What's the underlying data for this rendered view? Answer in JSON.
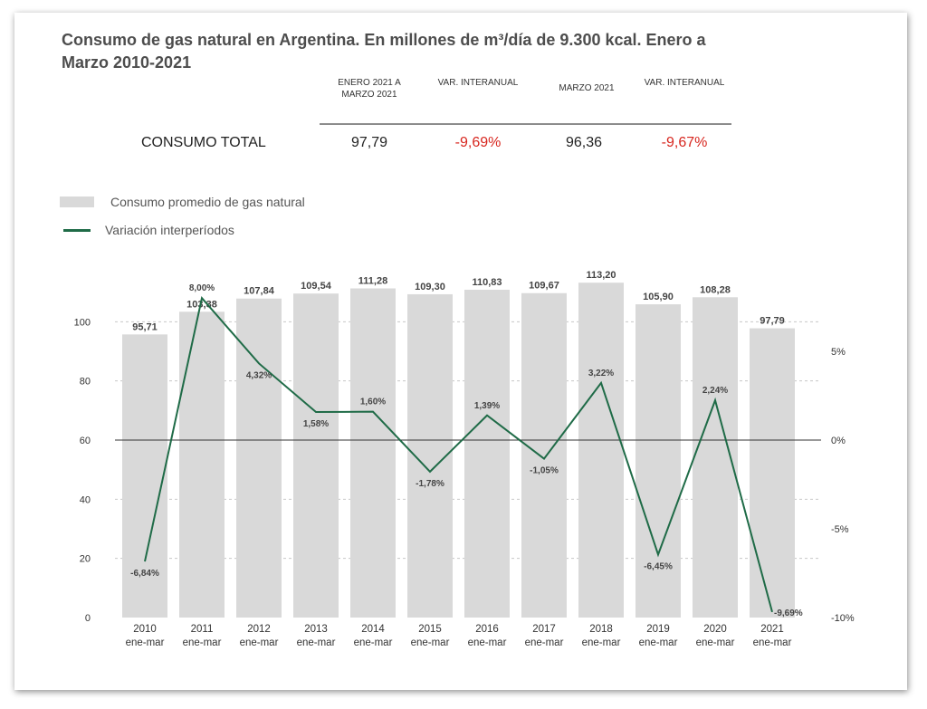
{
  "title": "Consumo de gas natural en Argentina. En millones de m³/día de 9.300 kcal. Enero a Marzo 2010-2021",
  "kpi": {
    "headers": [
      "ENERO 2021 A MARZO 2021",
      "VAR. INTERANUAL",
      "MARZO 2021",
      "VAR. INTERANUAL"
    ],
    "row_label": "CONSUMO TOTAL",
    "values": [
      "97,79",
      "-9,69%",
      "96,36",
      "-9,67%"
    ]
  },
  "legend": {
    "bar": "Consumo promedio de gas natural",
    "line": "Variación interperíodos"
  },
  "colors": {
    "bar": "#d9d9d9",
    "line": "#1f6b47",
    "negative": "#d7261e",
    "zero_line": "#333333",
    "grid": "#c8c8c8"
  },
  "chart_data": {
    "type": "bar",
    "categories": [
      "2010",
      "2011",
      "2012",
      "2013",
      "2014",
      "2015",
      "2016",
      "2017",
      "2018",
      "2019",
      "2020",
      "2021"
    ],
    "category_sublabel": "ene-mar",
    "series": [
      {
        "name": "Consumo promedio de gas natural",
        "type": "bar",
        "axis": "left",
        "values": [
          95.71,
          103.38,
          107.84,
          109.54,
          111.28,
          109.3,
          110.83,
          109.67,
          113.2,
          105.9,
          108.28,
          97.79
        ],
        "labels": [
          "95,71",
          "103,38",
          "107,84",
          "109,54",
          "111,28",
          "109,30",
          "110,83",
          "109,67",
          "113,20",
          "105,90",
          "108,28",
          "97,79"
        ]
      },
      {
        "name": "Variación interperíodos",
        "type": "line",
        "axis": "right",
        "values": [
          -6.84,
          8.0,
          4.32,
          1.58,
          1.6,
          -1.78,
          1.39,
          -1.05,
          3.22,
          -6.45,
          2.24,
          -9.69
        ],
        "labels": [
          "-6,84%",
          "8,00%",
          "4,32%",
          "1,58%",
          "1,60%",
          "-1,78%",
          "1,39%",
          "-1,05%",
          "3,22%",
          "-6,45%",
          "2,24%",
          "-9,69%"
        ]
      }
    ],
    "y_left": {
      "ticks": [
        0,
        20,
        40,
        60,
        80,
        100
      ],
      "range": [
        0,
        120
      ]
    },
    "y_right": {
      "ticks": [
        -10,
        -5,
        0,
        5
      ],
      "tick_labels": [
        "-10%",
        "-5%",
        "0%",
        "5%"
      ],
      "range": [
        -10,
        10
      ]
    },
    "grid": true,
    "legend_position": "top-left"
  }
}
